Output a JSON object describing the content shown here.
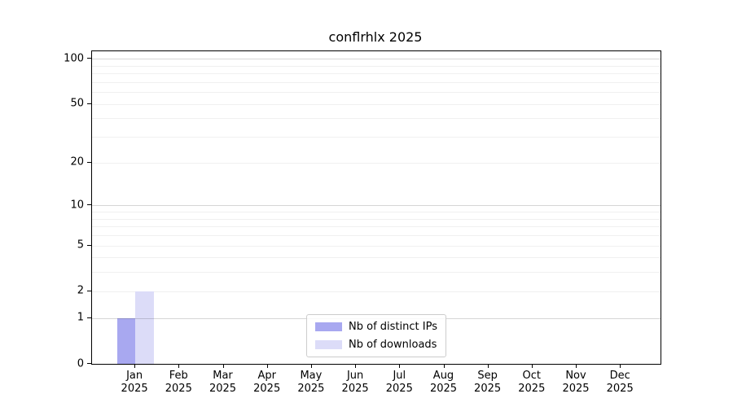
{
  "chart_data": {
    "type": "bar",
    "title": "conflrhlx 2025",
    "categories": [
      "Jan",
      "Feb",
      "Mar",
      "Apr",
      "May",
      "Jun",
      "Jul",
      "Aug",
      "Sep",
      "Oct",
      "Nov",
      "Dec"
    ],
    "year": "2025",
    "series": [
      {
        "name": "Nb of distinct IPs",
        "color": "#a8a8f0",
        "values": [
          1,
          0,
          0,
          0,
          0,
          0,
          0,
          0,
          0,
          0,
          0,
          0
        ]
      },
      {
        "name": "Nb of downloads",
        "color": "#dcdcf8",
        "values": [
          2,
          0,
          0,
          0,
          0,
          0,
          0,
          0,
          0,
          0,
          0,
          0
        ]
      }
    ],
    "yscale": "log1p",
    "ylim": [
      0,
      112
    ],
    "yticks": [
      0,
      1,
      2,
      5,
      10,
      20,
      50,
      100
    ],
    "major_gridlines": [
      1,
      10,
      100
    ],
    "minor_gridlines": [
      2,
      3,
      4,
      5,
      6,
      7,
      8,
      9,
      20,
      30,
      40,
      50,
      60,
      70,
      80,
      90
    ],
    "grid": true,
    "legend_position": "lower center",
    "xlabel": "",
    "ylabel": ""
  }
}
